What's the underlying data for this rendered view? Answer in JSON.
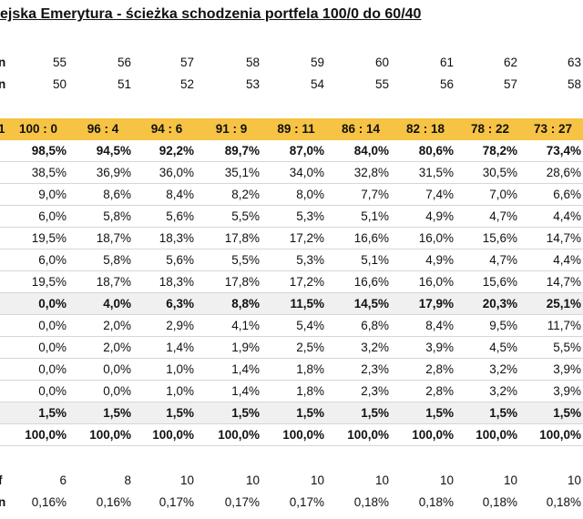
{
  "title": "ejska Emerytura - ścieżka schodzenia portfela 100/0 do 60/40",
  "rows": [
    {
      "label": "n",
      "style": "plain",
      "values": [
        "55",
        "56",
        "57",
        "58",
        "59",
        "60",
        "61",
        "62",
        "63"
      ]
    },
    {
      "label": "n",
      "style": "plain",
      "values": [
        "50",
        "51",
        "52",
        "53",
        "54",
        "55",
        "56",
        "57",
        "58"
      ]
    },
    {
      "label": "",
      "style": "spacer",
      "values": []
    },
    {
      "label": "1",
      "style": "yellow",
      "values": [
        "100 : 0",
        "96 : 4",
        "94 : 6",
        "91 : 9",
        "89 : 11",
        "86 : 14",
        "82 : 18",
        "78 : 22",
        "73 : 27"
      ]
    },
    {
      "label": "",
      "style": "bold",
      "values": [
        "98,5%",
        "94,5%",
        "92,2%",
        "89,7%",
        "87,0%",
        "84,0%",
        "80,6%",
        "78,2%",
        "73,4%"
      ]
    },
    {
      "label": "",
      "style": "plain",
      "values": [
        "38,5%",
        "36,9%",
        "36,0%",
        "35,1%",
        "34,0%",
        "32,8%",
        "31,5%",
        "30,5%",
        "28,6%"
      ]
    },
    {
      "label": "",
      "style": "plain",
      "values": [
        "9,0%",
        "8,6%",
        "8,4%",
        "8,2%",
        "8,0%",
        "7,7%",
        "7,4%",
        "7,0%",
        "6,6%"
      ]
    },
    {
      "label": "",
      "style": "plain",
      "values": [
        "6,0%",
        "5,8%",
        "5,6%",
        "5,5%",
        "5,3%",
        "5,1%",
        "4,9%",
        "4,7%",
        "4,4%"
      ]
    },
    {
      "label": "",
      "style": "plain",
      "values": [
        "19,5%",
        "18,7%",
        "18,3%",
        "17,8%",
        "17,2%",
        "16,6%",
        "16,0%",
        "15,6%",
        "14,7%"
      ]
    },
    {
      "label": "",
      "style": "plain",
      "values": [
        "6,0%",
        "5,8%",
        "5,6%",
        "5,5%",
        "5,3%",
        "5,1%",
        "4,9%",
        "4,7%",
        "4,4%"
      ]
    },
    {
      "label": "",
      "style": "plain",
      "values": [
        "19,5%",
        "18,7%",
        "18,3%",
        "17,8%",
        "17,2%",
        "16,6%",
        "16,0%",
        "15,6%",
        "14,7%"
      ]
    },
    {
      "label": "",
      "style": "graybold",
      "values": [
        "0,0%",
        "4,0%",
        "6,3%",
        "8,8%",
        "11,5%",
        "14,5%",
        "17,9%",
        "20,3%",
        "25,1%"
      ]
    },
    {
      "label": "",
      "style": "plain",
      "values": [
        "0,0%",
        "2,0%",
        "2,9%",
        "4,1%",
        "5,4%",
        "6,8%",
        "8,4%",
        "9,5%",
        "11,7%"
      ]
    },
    {
      "label": "",
      "style": "plain",
      "values": [
        "0,0%",
        "2,0%",
        "1,4%",
        "1,9%",
        "2,5%",
        "3,2%",
        "3,9%",
        "4,5%",
        "5,5%"
      ]
    },
    {
      "label": "",
      "style": "plain",
      "values": [
        "0,0%",
        "0,0%",
        "1,0%",
        "1,4%",
        "1,8%",
        "2,3%",
        "2,8%",
        "3,2%",
        "3,9%"
      ]
    },
    {
      "label": "",
      "style": "plain",
      "values": [
        "0,0%",
        "0,0%",
        "1,0%",
        "1,4%",
        "1,8%",
        "2,3%",
        "2,8%",
        "3,2%",
        "3,9%"
      ]
    },
    {
      "label": "",
      "style": "graybold",
      "values": [
        "1,5%",
        "1,5%",
        "1,5%",
        "1,5%",
        "1,5%",
        "1,5%",
        "1,5%",
        "1,5%",
        "1,5%"
      ]
    },
    {
      "label": "",
      "style": "bold",
      "values": [
        "100,0%",
        "100,0%",
        "100,0%",
        "100,0%",
        "100,0%",
        "100,0%",
        "100,0%",
        "100,0%",
        "100,0%"
      ]
    },
    {
      "label": "",
      "style": "spacer",
      "values": []
    },
    {
      "label": "f",
      "style": "plain",
      "values": [
        "6",
        "8",
        "10",
        "10",
        "10",
        "10",
        "10",
        "10",
        "10"
      ]
    },
    {
      "label": "n",
      "style": "plain",
      "values": [
        "0,16%",
        "0,16%",
        "0,17%",
        "0,17%",
        "0,17%",
        "0,18%",
        "0,18%",
        "0,18%",
        "0,18%"
      ]
    }
  ]
}
